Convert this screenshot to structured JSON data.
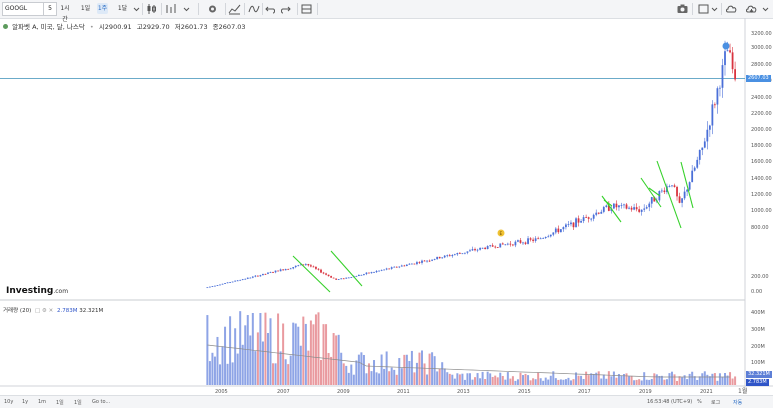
{
  "toolbar": {
    "symbol": "GOOGL",
    "interval": "5",
    "buttons": [
      {
        "id": "btn-1min",
        "label": "1시간",
        "x": 58,
        "w": 14
      },
      {
        "id": "btn-1d",
        "label": "1일",
        "x": 80,
        "w": 11
      },
      {
        "id": "btn-1w",
        "label": "1주",
        "x": 97,
        "w": 11,
        "active": true
      },
      {
        "id": "btn-1m",
        "label": "1달",
        "x": 117,
        "w": 11
      }
    ]
  },
  "legend": {
    "name": "알파벳 A, 미국, 달, 나스닥",
    "open_label": "시",
    "open": "2900.91",
    "high_label": "고",
    "high": "2929.70",
    "low_label": "저",
    "low": "2601.73",
    "close_label": "종",
    "close": "2607.03"
  },
  "colors": {
    "up": "#4a6fd8",
    "down": "#d9333f",
    "vol_up": "#8ea4e6",
    "vol_down": "#e99a9f",
    "trend": "#36d12a",
    "last_price_line": "#3a8fb7",
    "sma": "#8c8c8c"
  },
  "price_axis": {
    "ticks": [
      "3200.00",
      "3000.00",
      "2800.00",
      "2600.00",
      "2400.00",
      "2200.00",
      "2000.00",
      "1800.00",
      "1600.00",
      "1400.00",
      "1200.00",
      "1000.00",
      "800.00",
      "200.00",
      "0.00"
    ],
    "last_price": "2607.03"
  },
  "volume": {
    "label": "거래량 (20)",
    "value1": "2.783M",
    "value2": "32.321M",
    "ticks": [
      "400M",
      "300M",
      "200M",
      "100M"
    ],
    "tag1": "32.321M",
    "tag2": "2.783M"
  },
  "time_axis": {
    "labels": [
      "2005",
      "2007",
      "2009",
      "2011",
      "2013",
      "2015",
      "2017",
      "2019",
      "2021"
    ],
    "right_label": "1월"
  },
  "bottom_bar": {
    "ranges": [
      "10y",
      "1y",
      "1m",
      "1일",
      "1일",
      "Go to..."
    ],
    "time": "16:53:48 (UTC+9)",
    "pct": "%",
    "log": "로그",
    "auto": "자동"
  },
  "logo": {
    "brand": "Investing",
    "suffix": ".com"
  },
  "earnings_marker": "E",
  "chart_data": {
    "type": "candlestick",
    "period": "monthly",
    "x_range": [
      "2004-08",
      "2022-01"
    ],
    "y_range": [
      0,
      3200
    ],
    "last_close": 2607.03,
    "trend_lines": 8,
    "sma_period": 20,
    "milestones": [
      {
        "date": "2004-08",
        "price": 50
      },
      {
        "date": "2007-11",
        "price": 350
      },
      {
        "date": "2008-11",
        "price": 150
      },
      {
        "date": "2013-12",
        "price": 560
      },
      {
        "date": "2015-07",
        "price": 650
      },
      {
        "date": "2017-12",
        "price": 1050
      },
      {
        "date": "2018-12",
        "price": 1000
      },
      {
        "date": "2019-12",
        "price": 1350
      },
      {
        "date": "2020-03",
        "price": 1050
      },
      {
        "date": "2020-12",
        "price": 1750
      },
      {
        "date": "2021-10",
        "price": 2960
      },
      {
        "date": "2022-01",
        "price": 2607
      }
    ]
  }
}
